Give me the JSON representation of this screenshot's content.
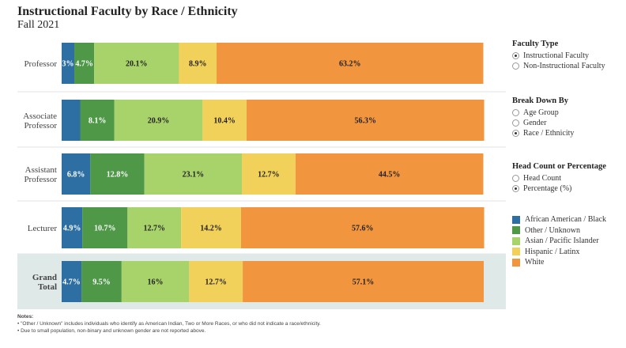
{
  "header": {
    "title": "Instructional Faculty by Race / Ethnicity",
    "subtitle": "Fall 2021"
  },
  "colors": {
    "african_american": "#2e6fa3",
    "other_unknown": "#4f9848",
    "asian_pacific": "#a8d26a",
    "hispanic_latinx": "#f2d15a",
    "white": "#f2953f",
    "grand_total_bg": "#dfe9e7"
  },
  "chart_data": {
    "type": "bar",
    "orientation": "horizontal-stacked-100",
    "title": "Instructional Faculty by Race / Ethnicity",
    "subtitle": "Fall 2021",
    "categories": [
      "Professor",
      "Associate Professor",
      "Assistant Professor",
      "Lecturer",
      "Grand Total"
    ],
    "category_lines": [
      [
        "Professor"
      ],
      [
        "Associate",
        "Professor"
      ],
      [
        "Assistant",
        "Professor"
      ],
      [
        "Lecturer"
      ],
      [
        "Grand",
        "Total"
      ]
    ],
    "series": [
      {
        "name": "African American / Black",
        "color": "#2e6fa3",
        "values": [
          3.0,
          4.4,
          6.8,
          4.9,
          4.7
        ],
        "labels": [
          "3%",
          "",
          "6.8%",
          "4.9%",
          "4.7%"
        ]
      },
      {
        "name": "Other / Unknown",
        "color": "#4f9848",
        "values": [
          4.7,
          8.1,
          12.8,
          10.7,
          9.5
        ],
        "labels": [
          "4.7%",
          "8.1%",
          "12.8%",
          "10.7%",
          "9.5%"
        ]
      },
      {
        "name": "Asian / Pacific Islander",
        "color": "#a8d26a",
        "values": [
          20.1,
          20.9,
          23.1,
          12.7,
          16.0
        ],
        "labels": [
          "20.1%",
          "20.9%",
          "23.1%",
          "12.7%",
          "16%"
        ]
      },
      {
        "name": "Hispanic / Latinx",
        "color": "#f2d15a",
        "values": [
          8.9,
          10.4,
          12.7,
          14.2,
          12.7
        ],
        "labels": [
          "8.9%",
          "10.4%",
          "12.7%",
          "14.2%",
          "12.7%"
        ]
      },
      {
        "name": "White",
        "color": "#f2953f",
        "values": [
          63.2,
          56.3,
          44.5,
          57.6,
          57.1
        ],
        "labels": [
          "63.2%",
          "56.3%",
          "44.5%",
          "57.6%",
          "57.1%"
        ]
      }
    ],
    "xlim": [
      0,
      100
    ],
    "legend_position": "right"
  },
  "filters": {
    "faculty_type": {
      "heading": "Faculty Type",
      "options": [
        {
          "label": "Instructional Faculty",
          "selected": true
        },
        {
          "label": "Non-Instructional Faculty",
          "selected": false
        }
      ]
    },
    "break_down_by": {
      "heading": "Break Down By",
      "options": [
        {
          "label": "Age Group",
          "selected": false
        },
        {
          "label": "Gender",
          "selected": false
        },
        {
          "label": "Race / Ethnicity",
          "selected": true
        }
      ]
    },
    "count_or_pct": {
      "heading": "Head Count or Percentage",
      "options": [
        {
          "label": "Head Count",
          "selected": false
        },
        {
          "label": "Percentage (%)",
          "selected": true
        }
      ]
    }
  },
  "legend": {
    "items": [
      {
        "label": "African American / Black",
        "color": "#2e6fa3"
      },
      {
        "label": "Other / Unknown",
        "color": "#4f9848"
      },
      {
        "label": "Asian / Pacific Islander",
        "color": "#a8d26a"
      },
      {
        "label": "Hispanic / Latinx",
        "color": "#f2d15a"
      },
      {
        "label": "White",
        "color": "#f2953f"
      }
    ]
  },
  "notes": {
    "heading": "Notes:",
    "lines": [
      "• \"Other / Unknown\" includes individuals who identify as American Indian, Two or More Races, or who did not indicate a race/ethnicity.",
      "• Due to small population, non-binary and unknown gender are not reported above."
    ]
  }
}
